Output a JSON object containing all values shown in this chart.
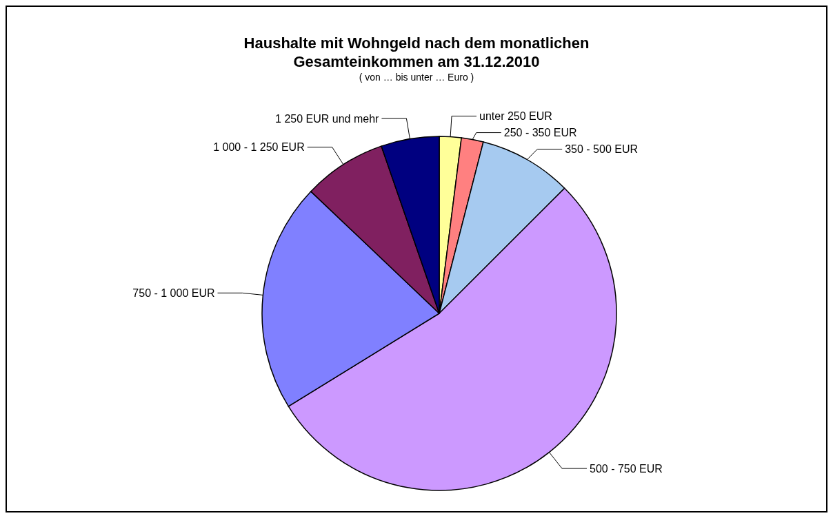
{
  "chart_data": {
    "type": "pie",
    "title": "Haushalte mit Wohngeld nach dem monatlichen Gesamteinkommen am 31.12.2010",
    "subtitle": "( von … bis unter … Euro )",
    "categories": [
      "unter 250 EUR",
      "250  -  350 EUR",
      "350  -  500 EUR",
      "500  -  750 EUR",
      "750 - 1 000 EUR",
      "1 000 - 1 250 EUR",
      "1 250 EUR und mehr"
    ],
    "values": [
      2.0,
      2.0,
      8.5,
      53.7,
      20.9,
      7.6,
      5.3
    ],
    "colors": [
      "#ffff99",
      "#ff8080",
      "#a6caf0",
      "#cc99ff",
      "#8080ff",
      "#802060",
      "#000080"
    ]
  }
}
